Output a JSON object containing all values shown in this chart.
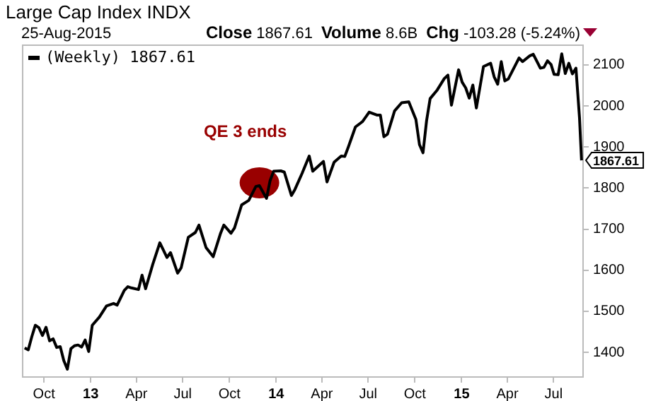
{
  "chart_data": {
    "type": "line",
    "title": "Large Cap Index INDX",
    "subtitle": "25-Aug-2015",
    "annotations": [
      "Close 1867.61",
      "Volume 8.6B",
      "Chg -103.28 (-5.24%)",
      {
        "text": "QE 3 ends",
        "x": "2013-11-29",
        "y": 1806
      },
      {
        "text": "1867.61",
        "x": "2015-08-25",
        "y": 1867.61
      }
    ],
    "series": [
      {
        "name": "(Weekly) 1867.61",
        "color": "#000000",
        "x": [
          "2012-08-24",
          "2012-08-31",
          "2012-09-07",
          "2012-09-14",
          "2012-09-21",
          "2012-09-28",
          "2012-10-05",
          "2012-10-12",
          "2012-10-19",
          "2012-10-26",
          "2012-11-02",
          "2012-11-09",
          "2012-11-16",
          "2012-11-23",
          "2012-11-30",
          "2012-12-07",
          "2012-12-14",
          "2012-12-21",
          "2012-12-28",
          "2013-01-04",
          "2013-01-18",
          "2013-02-01",
          "2013-02-15",
          "2013-02-22",
          "2013-03-08",
          "2013-03-15",
          "2013-03-22",
          "2013-04-05",
          "2013-04-12",
          "2013-04-19",
          "2013-05-03",
          "2013-05-17",
          "2013-05-31",
          "2013-06-07",
          "2013-06-21",
          "2013-06-28",
          "2013-07-12",
          "2013-07-26",
          "2013-08-02",
          "2013-08-16",
          "2013-08-30",
          "2013-09-13",
          "2013-09-20",
          "2013-10-04",
          "2013-10-11",
          "2013-10-25",
          "2013-11-08",
          "2013-11-22",
          "2013-11-29",
          "2013-12-13",
          "2013-12-20",
          "2013-12-27",
          "2014-01-10",
          "2014-01-17",
          "2014-01-31",
          "2014-02-07",
          "2014-02-21",
          "2014-03-07",
          "2014-03-14",
          "2014-03-28",
          "2014-04-04",
          "2014-04-11",
          "2014-04-25",
          "2014-05-09",
          "2014-05-16",
          "2014-05-23",
          "2014-06-06",
          "2014-06-20",
          "2014-07-03",
          "2014-07-18",
          "2014-07-25",
          "2014-08-01",
          "2014-08-08",
          "2014-08-22",
          "2014-09-05",
          "2014-09-19",
          "2014-10-03",
          "2014-10-10",
          "2014-10-17",
          "2014-10-24",
          "2014-10-31",
          "2014-11-14",
          "2014-11-28",
          "2014-12-05",
          "2014-12-12",
          "2014-12-26",
          "2015-01-02",
          "2015-01-09",
          "2015-01-16",
          "2015-01-23",
          "2015-01-30",
          "2015-02-13",
          "2015-02-27",
          "2015-03-06",
          "2015-03-13",
          "2015-03-20",
          "2015-03-27",
          "2015-04-03",
          "2015-04-24",
          "2015-05-01",
          "2015-05-15",
          "2015-05-22",
          "2015-06-05",
          "2015-06-12",
          "2015-06-19",
          "2015-06-26",
          "2015-07-02",
          "2015-07-10",
          "2015-07-17",
          "2015-07-24",
          "2015-07-31",
          "2015-08-07",
          "2015-08-14",
          "2015-08-21",
          "2015-08-25"
        ],
        "values": [
          1411,
          1406,
          1438,
          1466,
          1460,
          1441,
          1461,
          1428,
          1433,
          1412,
          1414,
          1380,
          1359,
          1409,
          1416,
          1418,
          1413,
          1430,
          1402,
          1466,
          1486,
          1513,
          1519,
          1515,
          1551,
          1560,
          1557,
          1553,
          1588,
          1555,
          1614,
          1667,
          1631,
          1643,
          1593,
          1606,
          1680,
          1692,
          1710,
          1655,
          1633,
          1688,
          1710,
          1690,
          1703,
          1759,
          1770,
          1804,
          1806,
          1775,
          1818,
          1841,
          1842,
          1839,
          1782,
          1797,
          1836,
          1878,
          1841,
          1857,
          1865,
          1815,
          1863,
          1878,
          1877,
          1900,
          1949,
          1962,
          1985,
          1978,
          1978,
          1925,
          1931,
          1988,
          2008,
          2010,
          1967,
          1906,
          1886,
          1964,
          2018,
          2039,
          2067,
          2075,
          2002,
          2088,
          2058,
          2044,
          2019,
          2051,
          1995,
          2096,
          2104,
          2071,
          2053,
          2108,
          2061,
          2066,
          2117,
          2108,
          2122,
          2126,
          2092,
          2094,
          2110,
          2101,
          2077,
          2076,
          2127,
          2079,
          2104,
          2078,
          2092,
          1971,
          1867.61
        ]
      }
    ],
    "xlim": [
      "2012-08-20",
      "2015-08-28"
    ],
    "xticks": [
      {
        "value": "2012-10-01",
        "label": "Oct"
      },
      {
        "value": "2013-01-01",
        "label": "13"
      },
      {
        "value": "2013-04-01",
        "label": "Apr"
      },
      {
        "value": "2013-07-01",
        "label": "Jul"
      },
      {
        "value": "2013-10-01",
        "label": "Oct"
      },
      {
        "value": "2014-01-01",
        "label": "14"
      },
      {
        "value": "2014-04-01",
        "label": "Apr"
      },
      {
        "value": "2014-07-01",
        "label": "Jul"
      },
      {
        "value": "2014-10-01",
        "label": "Oct"
      },
      {
        "value": "2015-01-01",
        "label": "15"
      },
      {
        "value": "2015-04-01",
        "label": "Apr"
      },
      {
        "value": "2015-07-01",
        "label": "Jul"
      }
    ],
    "ylim": [
      1340,
      2148
    ],
    "yticks": [
      1400,
      1500,
      1600,
      1700,
      1800,
      1900,
      2000,
      2100
    ],
    "grid": false,
    "legend": "top left",
    "marker": "none",
    "line_style": "solid"
  }
}
